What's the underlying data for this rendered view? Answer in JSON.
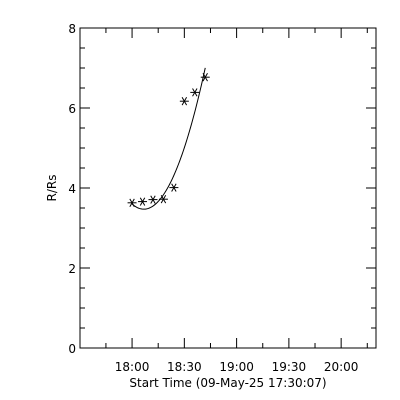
{
  "chart_data": {
    "type": "scatter",
    "xlabel": "Start Time (09-May-25 17:30:07)",
    "ylabel": "R/Rs",
    "xlim": [
      "17:30:07",
      "20:20"
    ],
    "ylim": [
      0,
      8
    ],
    "x_ticks": [
      "18:00",
      "18:30",
      "19:00",
      "19:30",
      "20:00"
    ],
    "y_ticks": [
      "0",
      "2",
      "4",
      "6",
      "8"
    ],
    "grid": false,
    "series": [
      {
        "marker": "asterisk",
        "x": [
          "18:00",
          "18:06",
          "18:12",
          "18:18",
          "18:24",
          "18:30",
          "18:36",
          "18:42"
        ],
        "y": [
          3.63,
          3.66,
          3.71,
          3.72,
          4.01,
          6.17,
          6.39,
          6.77
        ]
      },
      {
        "line": "solid",
        "x": [
          "18:00",
          "18:06",
          "18:12",
          "18:18",
          "18:24",
          "18:30",
          "18:36",
          "18:42"
        ],
        "y": [
          3.52,
          3.53,
          3.63,
          3.86,
          4.28,
          4.93,
          5.85,
          7.08
        ]
      }
    ],
    "colors": {
      "axis": "#000000",
      "marker": "#000000",
      "line": "#000000",
      "background": "#ffffff"
    }
  }
}
